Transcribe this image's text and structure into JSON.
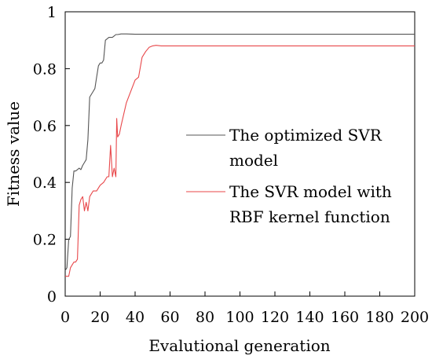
{
  "chart_data": {
    "type": "line",
    "title": "",
    "xlabel": "Evalutional generation",
    "ylabel": "Fitness value",
    "xlim": [
      0,
      200
    ],
    "ylim": [
      0,
      1
    ],
    "x_ticks": [
      "0",
      "20",
      "40",
      "60",
      "80",
      "100",
      "120",
      "140",
      "160",
      "180",
      "200"
    ],
    "y_ticks": [
      "0",
      "0.2",
      "0.4",
      "0.6",
      "0.8",
      "1"
    ],
    "grid": false,
    "legend_position": "center-right",
    "series": [
      {
        "name_lines": [
          "The optimized SVR",
          "model"
        ],
        "color": "#555555",
        "x": [
          0,
          1,
          2,
          3,
          4,
          5,
          6,
          7,
          8,
          9,
          10,
          11,
          12,
          13,
          14,
          15,
          16,
          17,
          18,
          19,
          20,
          21,
          22,
          23,
          24,
          25,
          26,
          27,
          28,
          29,
          30,
          32,
          35,
          40,
          60,
          100,
          150,
          200
        ],
        "y": [
          0.09,
          0.1,
          0.2,
          0.21,
          0.38,
          0.44,
          0.44,
          0.445,
          0.45,
          0.445,
          0.46,
          0.47,
          0.48,
          0.55,
          0.7,
          0.71,
          0.72,
          0.73,
          0.77,
          0.81,
          0.82,
          0.82,
          0.83,
          0.9,
          0.905,
          0.91,
          0.91,
          0.91,
          0.915,
          0.92,
          0.92,
          0.922,
          0.922,
          0.921,
          0.921,
          0.921,
          0.921,
          0.921
        ]
      },
      {
        "name_lines": [
          "The SVR model with",
          "RBF kernel function"
        ],
        "color": "#e8474a",
        "x": [
          0,
          1,
          2,
          3,
          4,
          5,
          6,
          7,
          8,
          9,
          10,
          11,
          12,
          13,
          14,
          15,
          16,
          17,
          18,
          20,
          22,
          24,
          25,
          26,
          27,
          28,
          29,
          29.5,
          30,
          31,
          32,
          35,
          40,
          42,
          44,
          46,
          48,
          50,
          52,
          55,
          60,
          100,
          150,
          200
        ],
        "y": [
          0.07,
          0.07,
          0.07,
          0.1,
          0.11,
          0.12,
          0.12,
          0.13,
          0.32,
          0.34,
          0.35,
          0.3,
          0.33,
          0.3,
          0.35,
          0.36,
          0.37,
          0.37,
          0.37,
          0.39,
          0.4,
          0.42,
          0.42,
          0.53,
          0.42,
          0.45,
          0.42,
          0.625,
          0.56,
          0.57,
          0.6,
          0.68,
          0.76,
          0.77,
          0.84,
          0.86,
          0.875,
          0.88,
          0.882,
          0.88,
          0.88,
          0.88,
          0.88,
          0.88
        ]
      }
    ]
  }
}
